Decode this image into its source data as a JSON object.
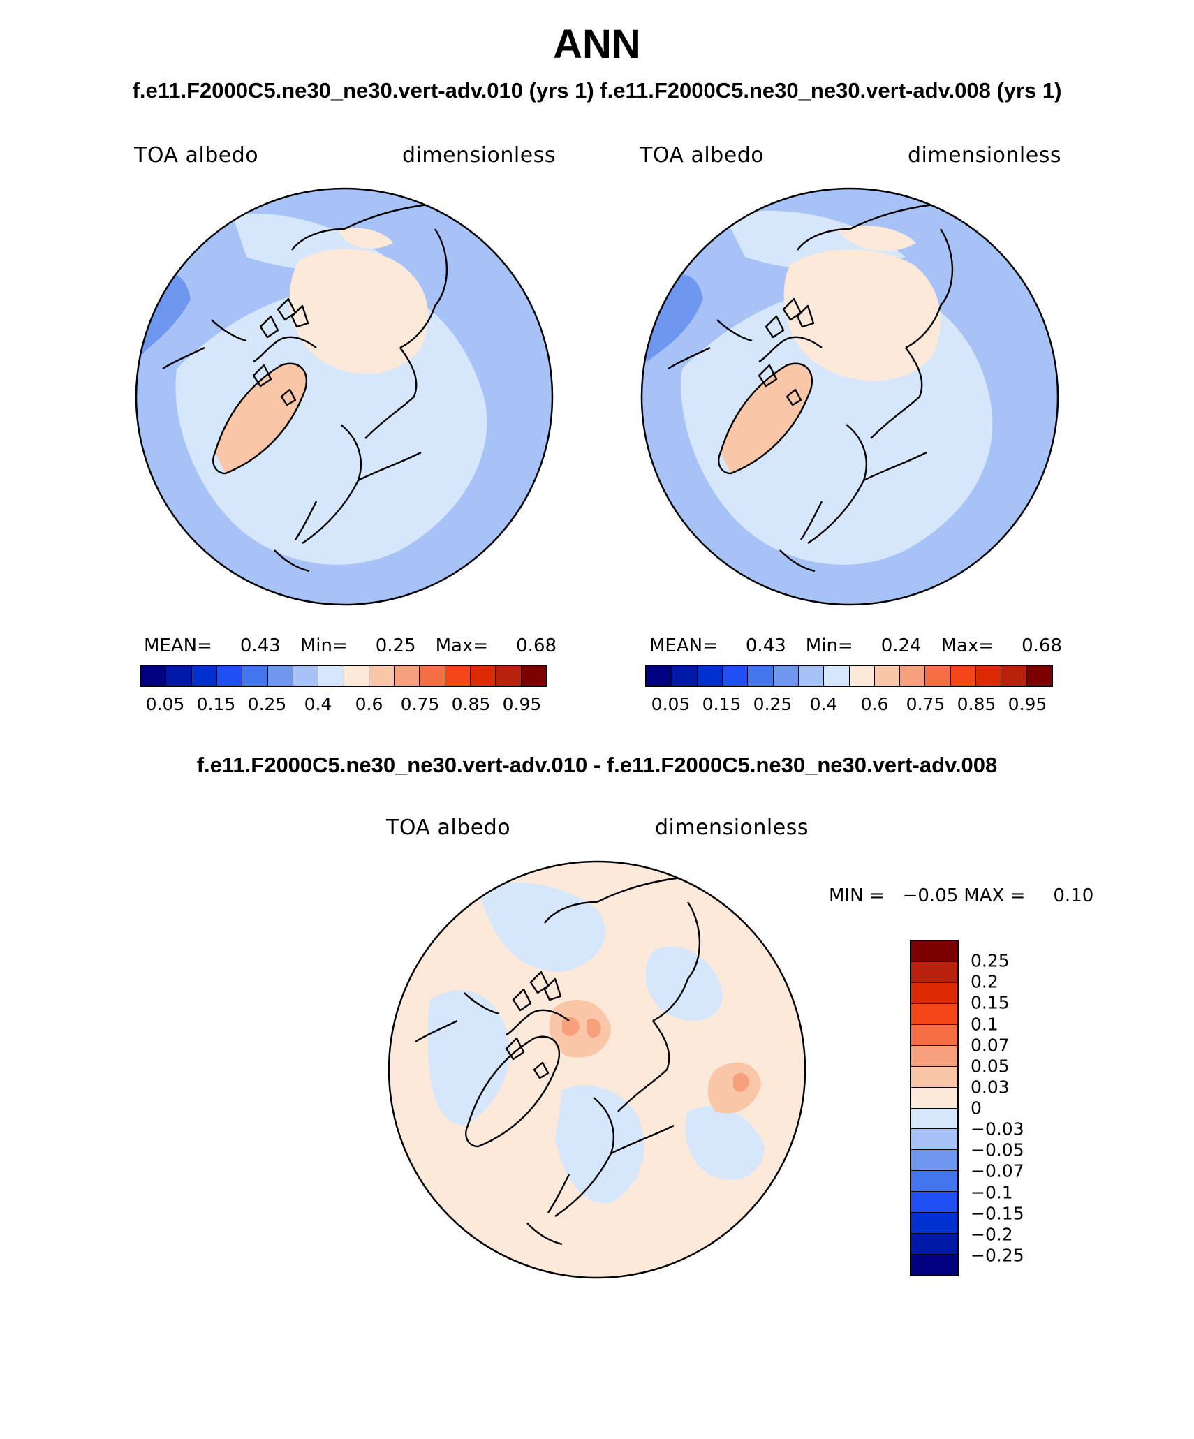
{
  "header": {
    "title": "ANN",
    "subtitle": "f.e11.F2000C5.ne30_ne30.vert-adv.010 (yrs 1) f.e11.F2000C5.ne30_ne30.vert-adv.008 (yrs 1)",
    "diff_subtitle": "f.e11.F2000C5.ne30_ne30.vert-adv.010 - f.e11.F2000C5.ne30_ne30.vert-adv.008"
  },
  "panels": [
    {
      "variable": "TOA albedo",
      "units": "dimensionless",
      "stats": {
        "mean_label": "MEAN=",
        "mean": "0.43",
        "min_label": "Min=",
        "min": "0.25",
        "max_label": "Max=",
        "max": "0.68"
      }
    },
    {
      "variable": "TOA albedo",
      "units": "dimensionless",
      "stats": {
        "mean_label": "MEAN=",
        "mean": "0.43",
        "min_label": "Min=",
        "min": "0.24",
        "max_label": "Max=",
        "max": "0.68"
      }
    }
  ],
  "abs_colorbar": {
    "colors": [
      "#000080",
      "#0019a8",
      "#0030d0",
      "#1f4ff5",
      "#4275ee",
      "#6e97f0",
      "#a6c2f7",
      "#d6e7fb",
      "#fde9d9",
      "#f9c6a8",
      "#f7a07c",
      "#f66f44",
      "#f44617",
      "#dc2a05",
      "#b8210c",
      "#7d0000"
    ],
    "tick_labels": [
      "0.05",
      "0.15",
      "0.25",
      "0.4",
      "0.6",
      "0.75",
      "0.85",
      "0.95"
    ]
  },
  "diff_panel": {
    "variable": "TOA albedo",
    "units": "dimensionless",
    "min_label": "MIN =",
    "min": "−0.05",
    "max_label": "MAX =",
    "max": "0.10"
  },
  "diff_colorbar": {
    "colors_top_to_bottom": [
      "#7d0000",
      "#b8210c",
      "#dc2a05",
      "#f44617",
      "#f66f44",
      "#f7a07c",
      "#f9c6a8",
      "#fde9d9",
      "#d6e7fb",
      "#a6c2f7",
      "#6e97f0",
      "#4275ee",
      "#1f4ff5",
      "#0030d0",
      "#0019a8",
      "#000080"
    ],
    "tick_labels": [
      "0.25",
      "0.2",
      "0.15",
      "0.1",
      "0.07",
      "0.05",
      "0.03",
      "0",
      "−0.03",
      "−0.05",
      "−0.07",
      "−0.1",
      "−0.15",
      "−0.2",
      "−0.25"
    ]
  },
  "map_colors": {
    "base_blue": "#a6c2f7",
    "light_blue": "#d6e7fb",
    "mid_blue": "#6e97f0",
    "peach": "#fde9d9",
    "salmon": "#f9c6a8",
    "orange": "#f7a07c",
    "coast": "#000000"
  }
}
